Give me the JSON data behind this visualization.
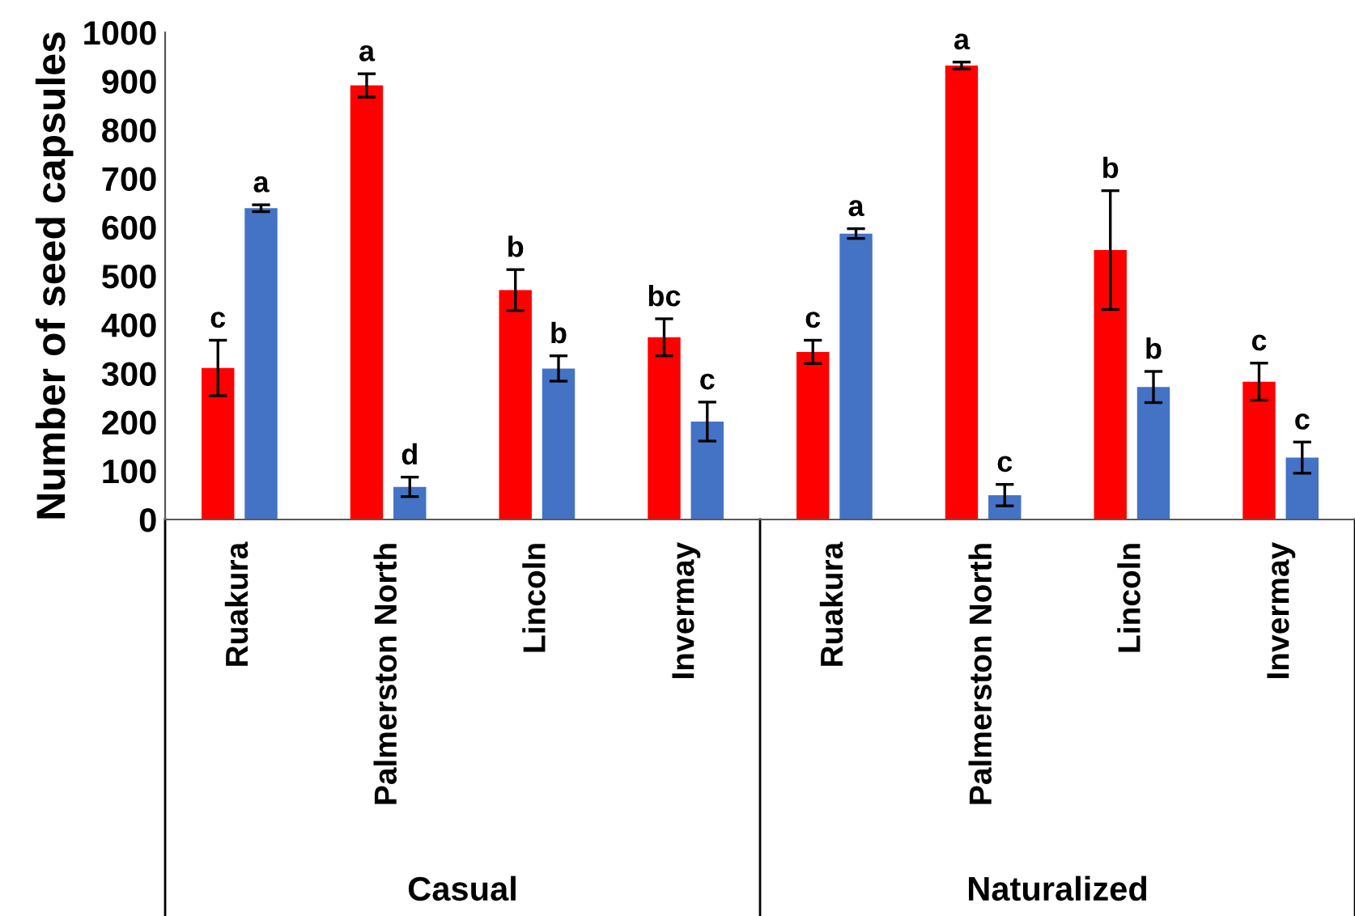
{
  "chart_data": {
    "type": "bar",
    "ylabel": "Number of seed capsules",
    "categories": [
      "Ruakura",
      "Palmerston North",
      "Lincoln",
      "Invermay",
      "Ruakura",
      "Palmerston North",
      "Lincoln",
      "Invermay"
    ],
    "series": [
      {
        "color": "#ff0000",
        "values": [
          311,
          891,
          471,
          374,
          344,
          932,
          553,
          283
        ],
        "errors": [
          57,
          24,
          42,
          38,
          24,
          7,
          122,
          38
        ],
        "value_labels": [
          "c",
          "a",
          "b",
          "bc",
          "c",
          "a",
          "b",
          "c"
        ]
      },
      {
        "color": "#4472c4",
        "values": [
          639,
          67,
          310,
          201,
          587,
          50,
          272,
          127
        ],
        "errors": [
          7,
          20,
          26,
          40,
          10,
          22,
          32,
          32
        ],
        "value_labels": [
          "a",
          "d",
          "b",
          "c",
          "a",
          "c",
          "b",
          "c"
        ]
      }
    ],
    "annotations": [
      "Casual",
      "Naturalized"
    ],
    "ylim": [
      0,
      1000
    ],
    "yticks": [
      0,
      100,
      200,
      300,
      400,
      500,
      600,
      700,
      800,
      900,
      1000
    ],
    "grid": false,
    "legend": false
  }
}
